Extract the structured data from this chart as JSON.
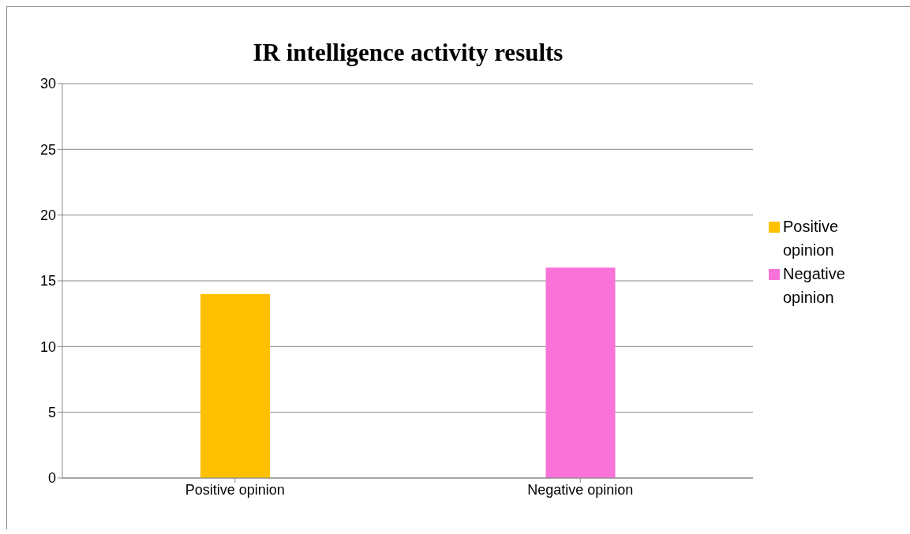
{
  "chart_data": {
    "type": "bar",
    "title": "IR  intelligence activity results",
    "categories": [
      "Positive opinion",
      "Negative opinion"
    ],
    "series": [
      {
        "name": "Positive opinion",
        "color": "#ffc000",
        "values": [
          14,
          null
        ]
      },
      {
        "name": "Negative opinion",
        "color": "#f872d8",
        "values": [
          null,
          16
        ]
      }
    ],
    "stacked": true,
    "ylim": [
      0,
      30
    ],
    "yticks": [
      0,
      5,
      10,
      15,
      20,
      25,
      30
    ],
    "grid": "y",
    "legend": "right"
  }
}
